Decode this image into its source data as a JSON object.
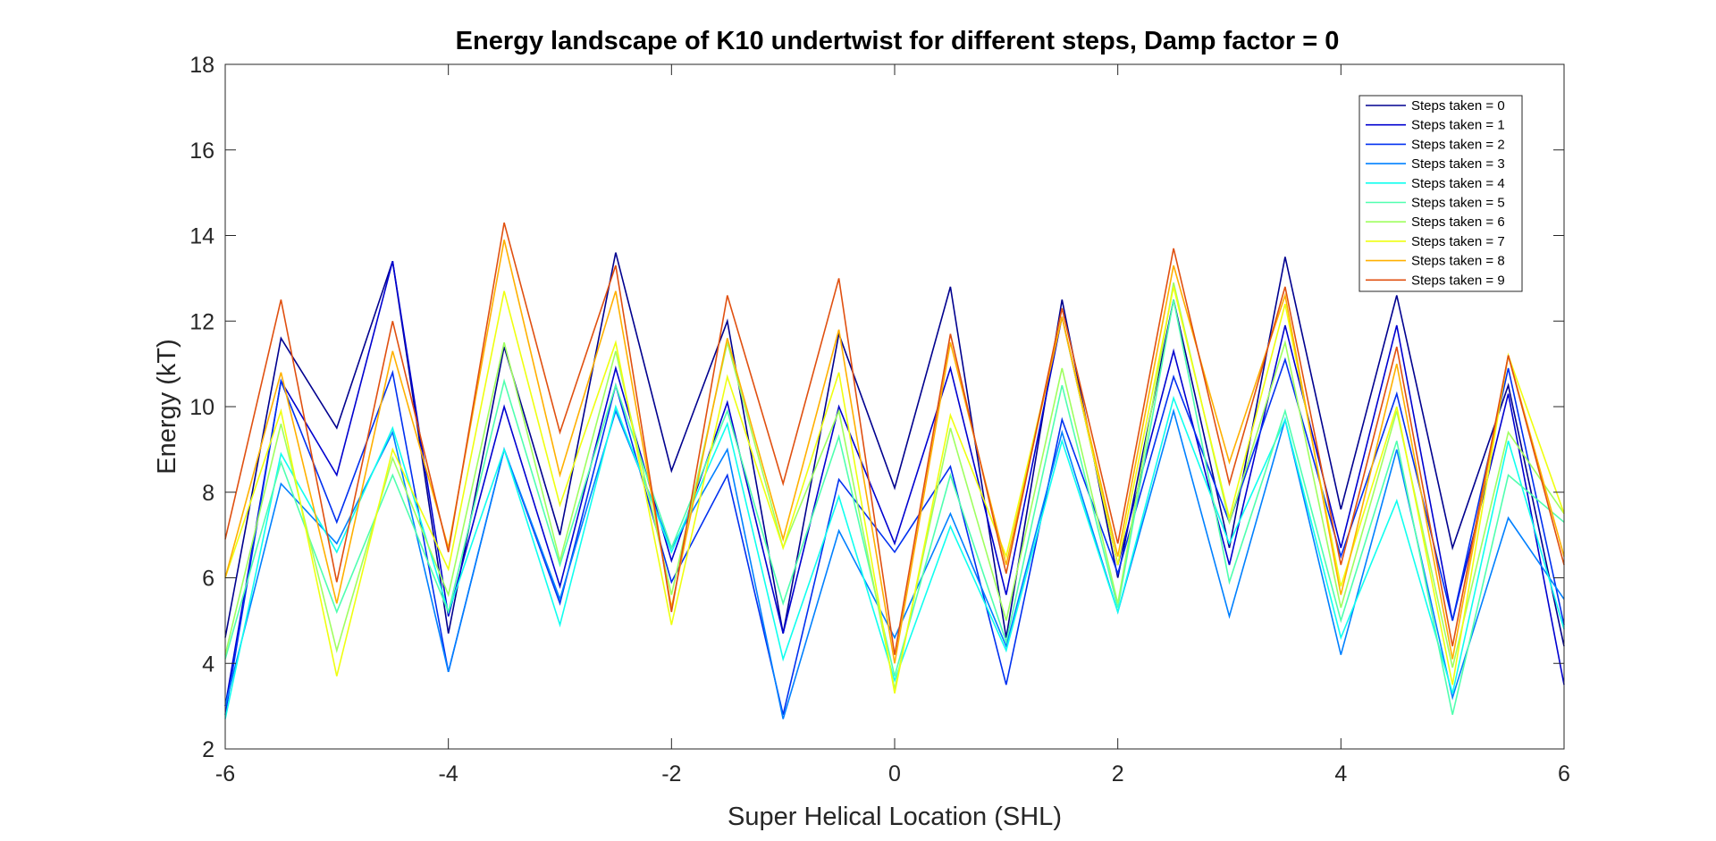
{
  "chart_data": {
    "type": "line",
    "title": "Energy landscape of K10 undertwist for different steps, Damp factor = 0",
    "xlabel": "Super Helical Location (SHL)",
    "ylabel": "Energy (kT)",
    "xlim": [
      -6,
      6
    ],
    "ylim": [
      2,
      18
    ],
    "xticks": [
      -6,
      -4,
      -2,
      0,
      2,
      4,
      6
    ],
    "yticks": [
      2,
      4,
      6,
      8,
      10,
      12,
      14,
      16,
      18
    ],
    "grid": false,
    "legend_position": "top-right",
    "x": [
      -6,
      -5.5,
      -5,
      -4.5,
      -4,
      -3.5,
      -3,
      -2.5,
      -2,
      -1.5,
      -1,
      -0.5,
      0,
      0.5,
      1,
      1.5,
      2,
      2.5,
      3,
      3.5,
      4,
      4.5,
      5,
      5.5,
      6
    ],
    "series": [
      {
        "name": "Steps taken = 0",
        "color": "#00008F",
        "values": [
          4.6,
          11.6,
          9.5,
          13.4,
          4.7,
          11.4,
          7.0,
          13.6,
          8.5,
          12.0,
          4.7,
          11.7,
          8.1,
          12.8,
          4.6,
          12.5,
          6.0,
          12.5,
          6.7,
          13.5,
          7.6,
          12.6,
          6.7,
          10.5,
          4.4
        ]
      },
      {
        "name": "Steps taken = 1",
        "color": "#0000D0",
        "values": [
          3.0,
          10.6,
          8.4,
          13.4,
          5.1,
          10.0,
          5.8,
          10.9,
          6.4,
          10.1,
          4.7,
          10.0,
          6.8,
          10.9,
          5.6,
          12.1,
          6.3,
          11.3,
          6.3,
          11.9,
          6.7,
          11.9,
          5.0,
          10.3,
          3.5
        ]
      },
      {
        "name": "Steps taken = 2",
        "color": "#0030F0",
        "values": [
          2.8,
          10.6,
          7.3,
          10.8,
          3.8,
          9.0,
          5.4,
          10.5,
          5.9,
          8.4,
          2.8,
          8.3,
          6.6,
          8.6,
          3.5,
          9.7,
          6.1,
          10.7,
          7.3,
          11.1,
          6.5,
          10.3,
          5.0,
          10.9,
          4.9
        ]
      },
      {
        "name": "Steps taken = 3",
        "color": "#0080FF",
        "values": [
          3.0,
          8.2,
          6.8,
          9.4,
          3.8,
          9.0,
          5.5,
          9.9,
          6.7,
          9.0,
          2.7,
          7.1,
          4.6,
          7.5,
          4.4,
          9.4,
          5.2,
          9.9,
          5.1,
          9.7,
          4.2,
          9.0,
          3.2,
          7.4,
          5.5
        ]
      },
      {
        "name": "Steps taken = 4",
        "color": "#10FFEF",
        "values": [
          2.7,
          8.9,
          6.6,
          9.5,
          5.2,
          9.0,
          4.9,
          10.0,
          6.6,
          9.6,
          4.1,
          7.9,
          3.6,
          7.2,
          4.3,
          9.2,
          5.2,
          10.2,
          6.8,
          9.7,
          4.6,
          7.8,
          3.3,
          9.2,
          4.8
        ]
      },
      {
        "name": "Steps taken = 5",
        "color": "#50FFAF",
        "values": [
          4.1,
          8.7,
          5.2,
          8.4,
          5.2,
          10.6,
          6.3,
          10.5,
          6.7,
          9.9,
          5.4,
          9.3,
          3.7,
          8.4,
          4.5,
          10.5,
          5.3,
          12.5,
          5.9,
          9.9,
          5.0,
          9.2,
          2.8,
          8.4,
          7.3
        ]
      },
      {
        "name": "Steps taken = 6",
        "color": "#9FFF60",
        "values": [
          4.2,
          9.6,
          4.3,
          8.8,
          5.6,
          11.5,
          6.4,
          11.3,
          5.6,
          11.5,
          6.7,
          9.9,
          3.4,
          9.5,
          5.0,
          10.9,
          5.4,
          12.9,
          7.3,
          11.5,
          5.3,
          9.9,
          3.9,
          9.4,
          7.5
        ]
      },
      {
        "name": "Steps taken = 7",
        "color": "#EFFF10",
        "values": [
          6.0,
          9.9,
          3.7,
          9.0,
          6.2,
          12.7,
          7.7,
          11.5,
          4.9,
          10.7,
          6.7,
          10.8,
          3.3,
          9.8,
          6.5,
          12.1,
          6.3,
          12.8,
          7.4,
          12.4,
          5.8,
          10.0,
          3.5,
          11.2,
          7.5
        ]
      },
      {
        "name": "Steps taken = 8",
        "color": "#FFB000",
        "values": [
          6.0,
          10.8,
          5.4,
          11.3,
          6.7,
          13.9,
          8.4,
          12.7,
          5.3,
          11.6,
          6.9,
          11.8,
          4.0,
          11.5,
          6.3,
          12.1,
          6.5,
          13.3,
          8.7,
          12.6,
          5.6,
          11.0,
          4.1,
          11.2,
          6.5
        ]
      },
      {
        "name": "Steps taken = 9",
        "color": "#E05010",
        "values": [
          6.9,
          12.5,
          5.9,
          12.0,
          6.6,
          14.3,
          9.4,
          13.3,
          5.2,
          12.6,
          8.2,
          13.0,
          4.2,
          11.7,
          6.1,
          12.3,
          6.8,
          13.7,
          8.2,
          12.8,
          6.3,
          11.4,
          4.4,
          11.2,
          6.3
        ]
      }
    ]
  }
}
